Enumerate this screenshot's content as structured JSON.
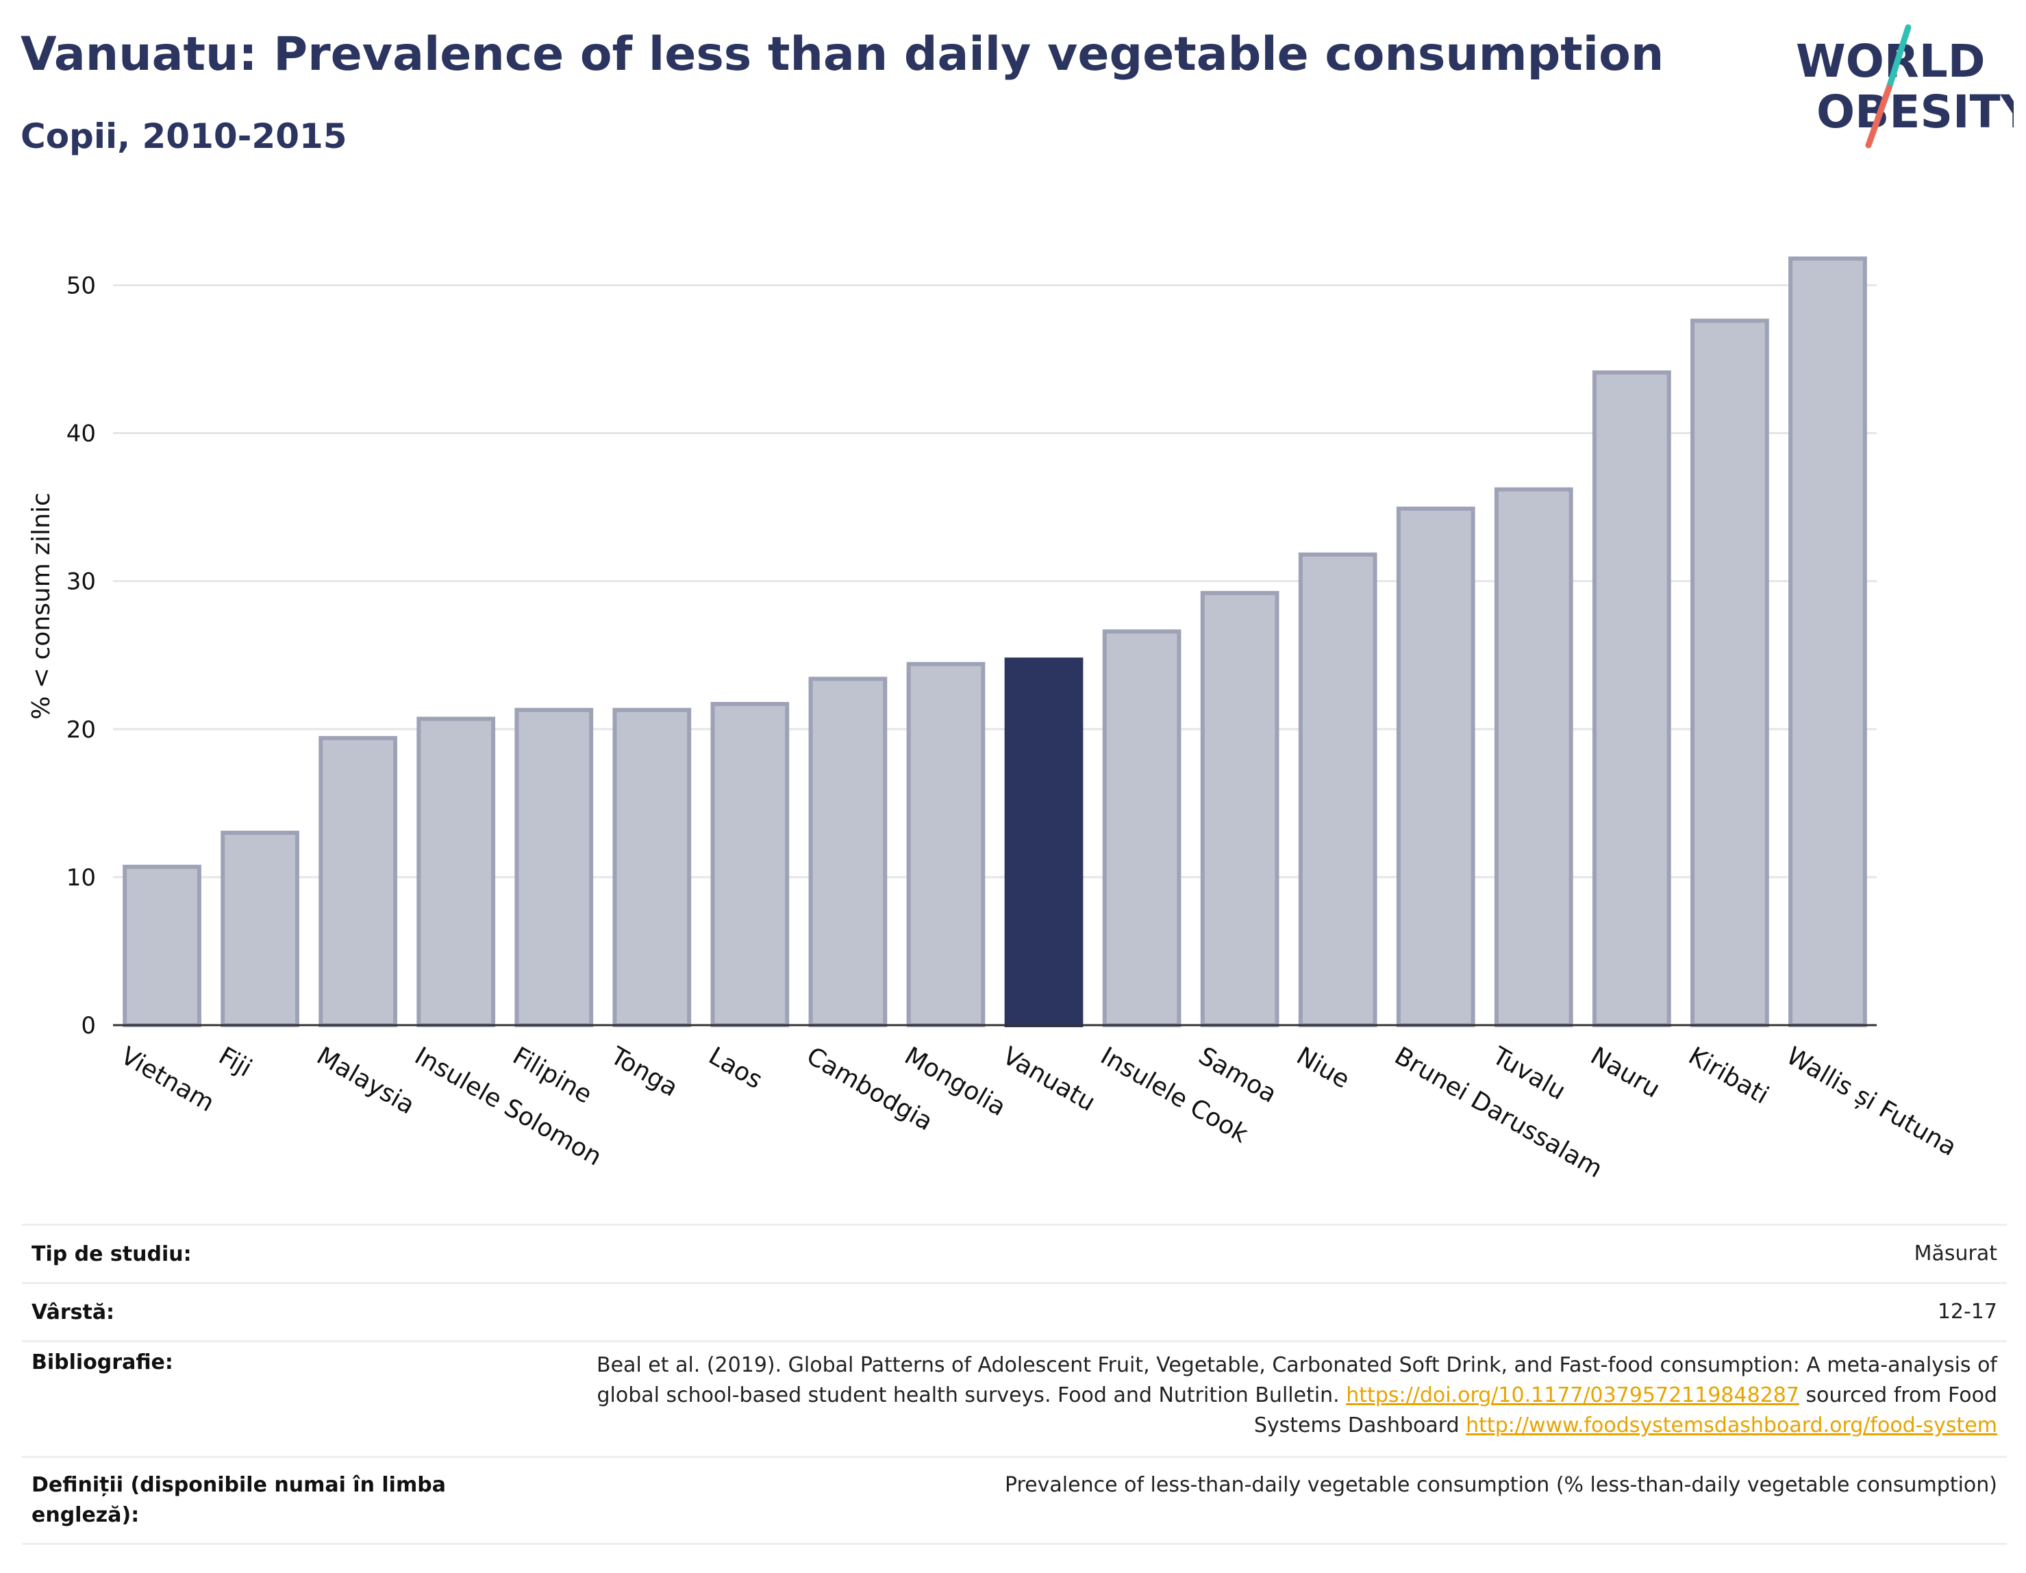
{
  "header": {
    "title": "Vanuatu: Prevalence of less than daily vegetable consumption",
    "subtitle": "Copii, 2010-2015",
    "logo_line1": "WORLD",
    "logo_line2": "OBESITY"
  },
  "chart_data": {
    "type": "bar",
    "title": "Vanuatu: Prevalence of less than daily vegetable consumption",
    "subtitle": "Copii, 2010-2015",
    "ylabel": "% < consum zilnic",
    "xlabel": "",
    "ylim": [
      0,
      54
    ],
    "yticks": [
      0,
      10,
      20,
      30,
      40,
      50
    ],
    "grid": true,
    "categories": [
      "Vietnam",
      "Fiji",
      "Malaysia",
      "Insulele Solomon",
      "Filipine",
      "Tonga",
      "Laos",
      "Cambodgia",
      "Mongolia",
      "Vanuatu",
      "Insulele Cook",
      "Samoa",
      "Niue",
      "Brunei Darussalam",
      "Tuvalu",
      "Nauru",
      "Kiribati",
      "Wallis și Futuna"
    ],
    "values": [
      10.7,
      13.0,
      19.4,
      20.7,
      21.3,
      21.3,
      21.7,
      23.4,
      24.4,
      24.7,
      26.6,
      29.2,
      31.8,
      34.9,
      36.2,
      44.1,
      47.6,
      51.8
    ],
    "highlight": "Vanuatu",
    "colors": {
      "bar": "#bfc2cf",
      "bar_border": "#9da2b6",
      "highlight": "#2b3560",
      "grid": "#e6e6e6",
      "axis": "#333333"
    }
  },
  "meta": {
    "rows": [
      {
        "label": "Tip de studiu:",
        "value": "Măsurat"
      },
      {
        "label": "Vârstă:",
        "value": "12-17"
      },
      {
        "label": "Bibliografie:",
        "value_pre": "Beal et al. (2019). Global Patterns of Adolescent Fruit, Vegetable, Carbonated Soft Drink, and Fast-food consumption: A meta-analysis of global school-based student health surveys. Food and Nutrition Bulletin.",
        "link1": "https://doi.org/10.1177/0379572119848287",
        "value_mid": "sourced from Food Systems Dashboard",
        "link2": "http://www.foodsystemsdashboard.org/food-system"
      },
      {
        "label": "Definiții (disponibile numai în limba engleză):",
        "value": "Prevalence of less-than-daily vegetable consumption (% less-than-daily vegetable consumption)"
      }
    ]
  }
}
